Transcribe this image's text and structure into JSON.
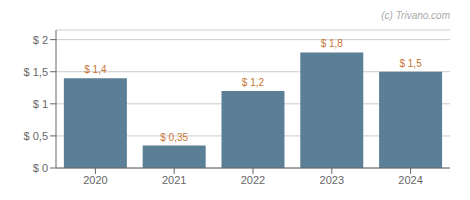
{
  "chart_data": {
    "type": "bar",
    "categories": [
      "2020",
      "2021",
      "2022",
      "2023",
      "2024"
    ],
    "values": [
      1.4,
      0.35,
      1.2,
      1.8,
      1.5
    ],
    "value_labels": [
      "$ 1,4",
      "$ 0,35",
      "$ 1,2",
      "$ 1,8",
      "$ 1,5"
    ],
    "data_labels": true,
    "color": "#5b7f96",
    "ylim": [
      0,
      2.15
    ],
    "yticks": [
      {
        "value": 0,
        "label": "$ 0"
      },
      {
        "value": 0.5,
        "label": "$ 0,5"
      },
      {
        "value": 1,
        "label": "$ 1"
      },
      {
        "value": 1.5,
        "label": "$ 1,5"
      },
      {
        "value": 2,
        "label": "$ 2"
      }
    ],
    "grid": true,
    "annotations": [
      "(c) Trivano.com"
    ]
  }
}
